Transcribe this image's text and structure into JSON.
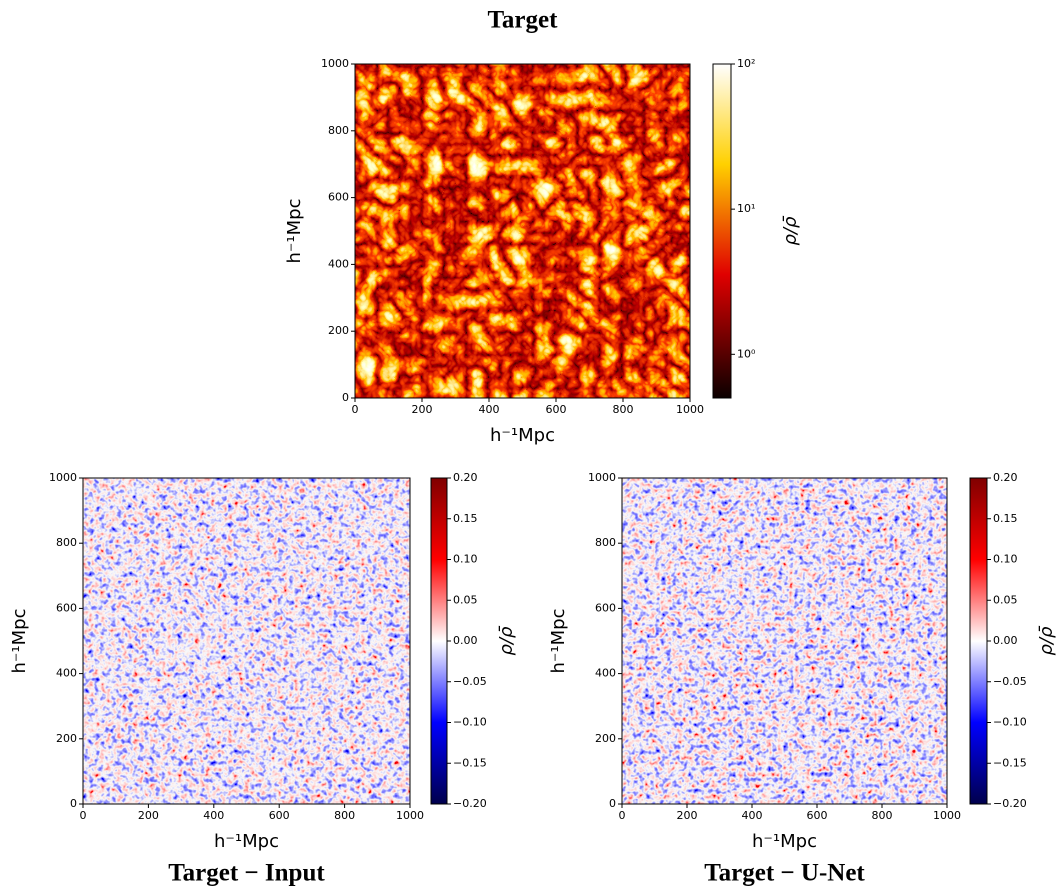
{
  "chart_data": [
    {
      "type": "heatmap",
      "title": "Target",
      "xlabel": "h⁻¹Mpc",
      "ylabel": "h⁻¹Mpc",
      "xlim": [
        0,
        1000
      ],
      "ylim": [
        0,
        1000
      ],
      "xticks": [
        0,
        200,
        400,
        600,
        800,
        1000
      ],
      "yticks": [
        0,
        200,
        400,
        600,
        800,
        1000
      ],
      "colorbar": {
        "label": "ρ/ρ̄",
        "colormap": "hot",
        "scale": "log",
        "lim": [
          0.5,
          100
        ],
        "ticks": [
          {
            "value": 1,
            "label": "10⁰"
          },
          {
            "value": 10,
            "label": "10¹"
          },
          {
            "value": 100,
            "label": "10²"
          }
        ]
      }
    },
    {
      "type": "heatmap",
      "title": "Target − Input",
      "xlabel": "h⁻¹Mpc",
      "ylabel": "h⁻¹Mpc",
      "xlim": [
        0,
        1000
      ],
      "ylim": [
        0,
        1000
      ],
      "xticks": [
        0,
        200,
        400,
        600,
        800,
        1000
      ],
      "yticks": [
        0,
        200,
        400,
        600,
        800,
        1000
      ],
      "colorbar": {
        "label": "ρ/ρ̄",
        "colormap": "seismic",
        "scale": "linear",
        "lim": [
          -0.2,
          0.2
        ],
        "ticks": [
          {
            "value": -0.2,
            "label": "−0.20"
          },
          {
            "value": -0.15,
            "label": "−0.15"
          },
          {
            "value": -0.1,
            "label": "−0.10"
          },
          {
            "value": -0.05,
            "label": "−0.05"
          },
          {
            "value": 0,
            "label": "0.00"
          },
          {
            "value": 0.05,
            "label": "0.05"
          },
          {
            "value": 0.1,
            "label": "0.10"
          },
          {
            "value": 0.15,
            "label": "0.15"
          },
          {
            "value": 0.2,
            "label": "0.20"
          }
        ]
      }
    },
    {
      "type": "heatmap",
      "title": "Target − U-Net",
      "xlabel": "h⁻¹Mpc",
      "ylabel": "h⁻¹Mpc",
      "xlim": [
        0,
        1000
      ],
      "ylim": [
        0,
        1000
      ],
      "xticks": [
        0,
        200,
        400,
        600,
        800,
        1000
      ],
      "yticks": [
        0,
        200,
        400,
        600,
        800,
        1000
      ],
      "colorbar": {
        "label": "ρ/ρ̄",
        "colormap": "seismic",
        "scale": "linear",
        "lim": [
          -0.2,
          0.2
        ],
        "ticks": [
          {
            "value": -0.2,
            "label": "−0.20"
          },
          {
            "value": -0.15,
            "label": "−0.15"
          },
          {
            "value": -0.1,
            "label": "−0.10"
          },
          {
            "value": -0.05,
            "label": "−0.05"
          },
          {
            "value": 0,
            "label": "0.00"
          },
          {
            "value": 0.05,
            "label": "0.05"
          },
          {
            "value": 0.1,
            "label": "0.10"
          },
          {
            "value": 0.15,
            "label": "0.15"
          },
          {
            "value": 0.2,
            "label": "0.20"
          }
        ]
      }
    }
  ]
}
